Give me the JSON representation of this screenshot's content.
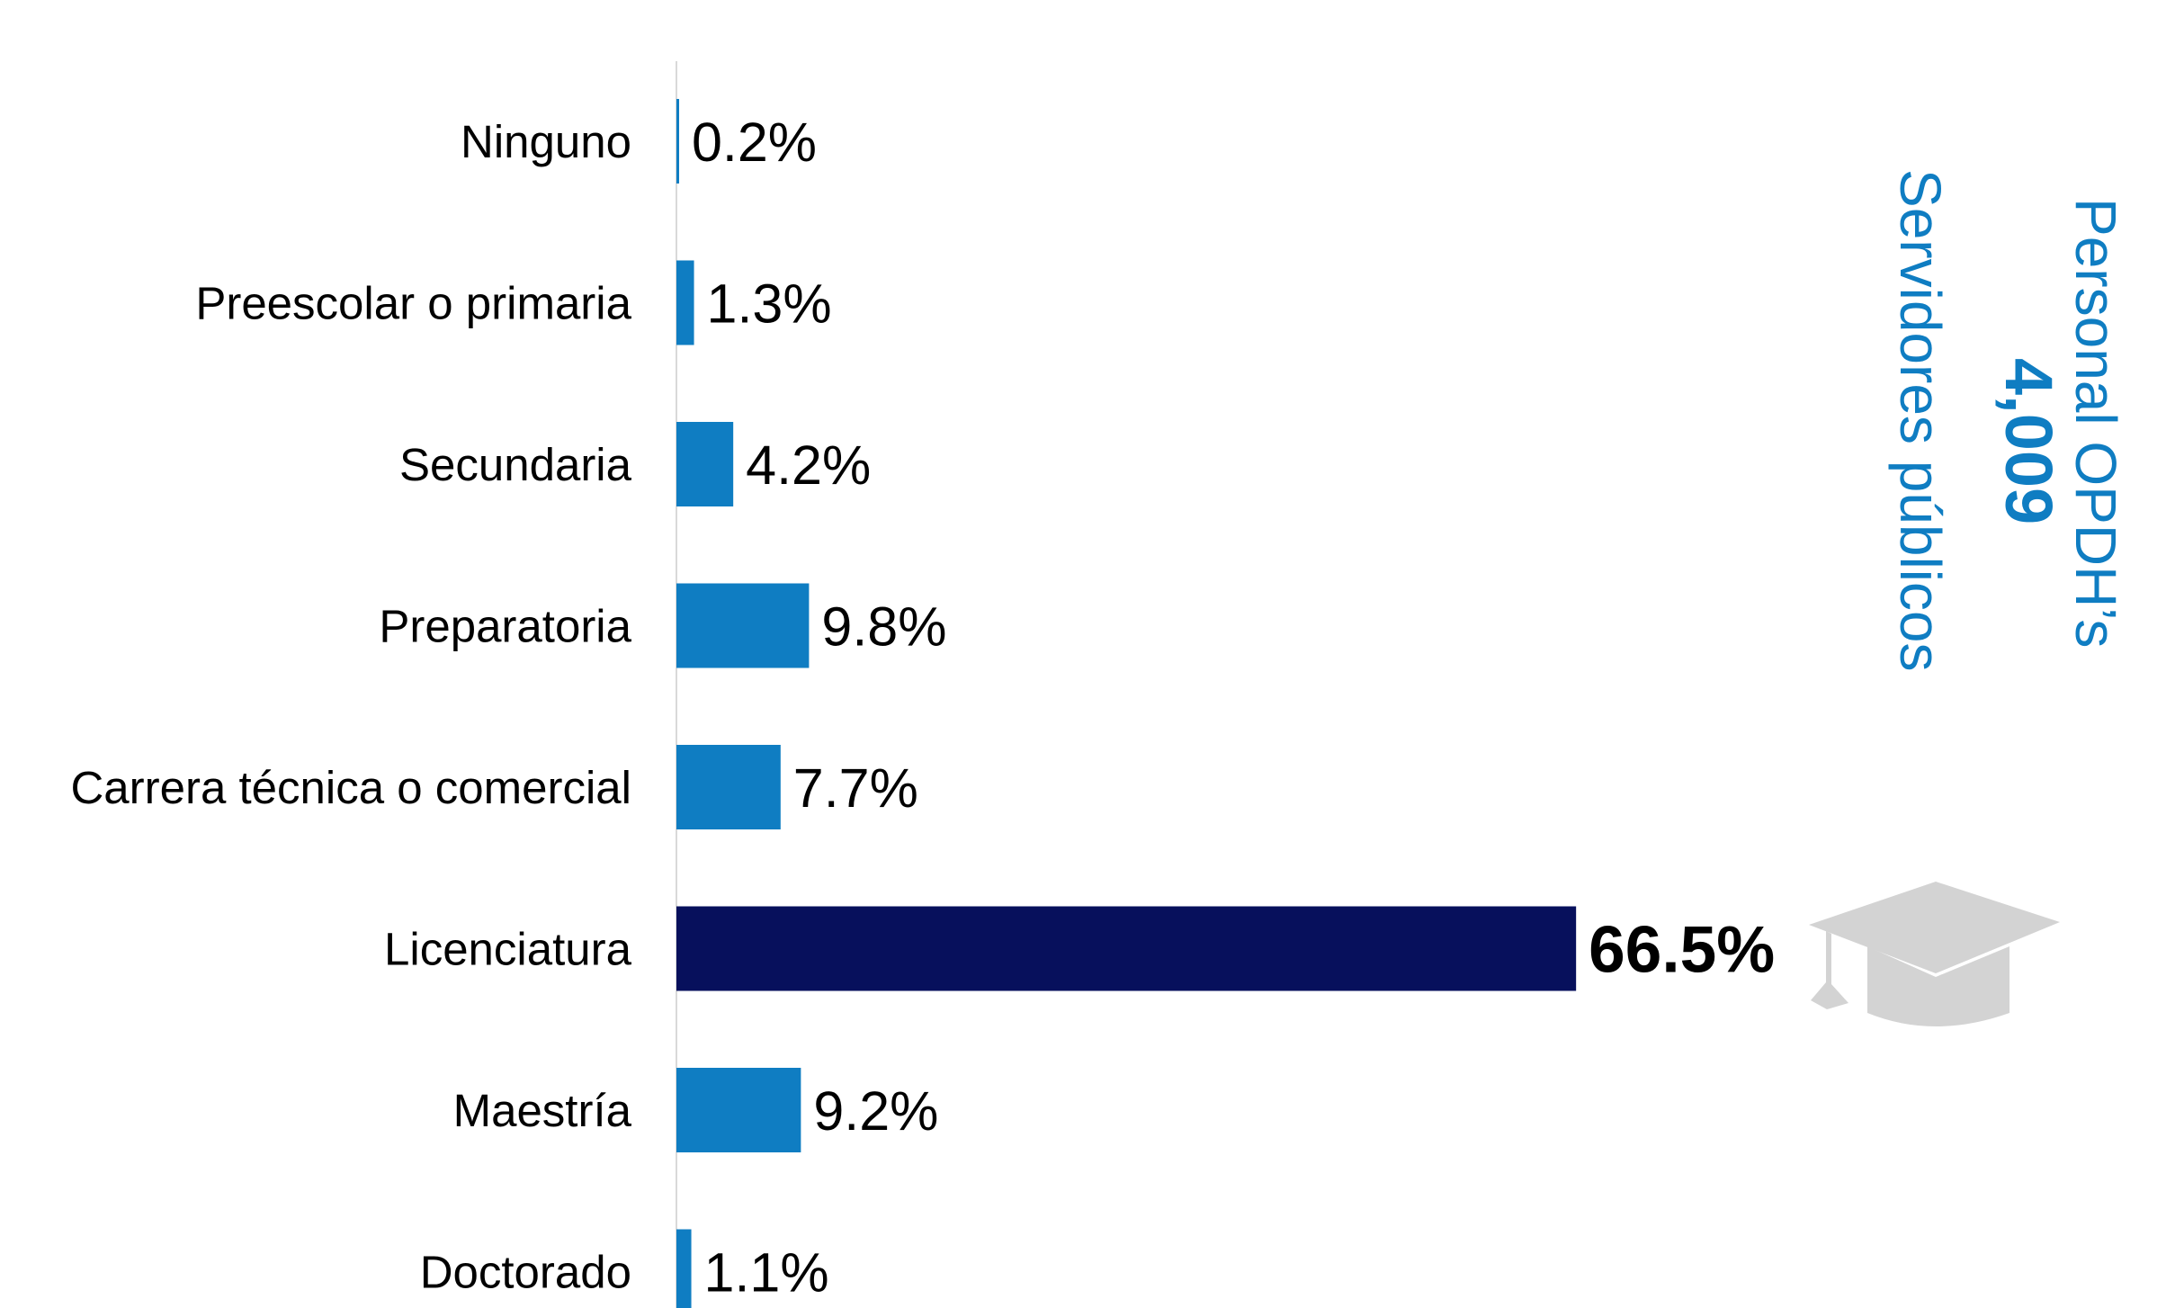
{
  "chart_data": {
    "type": "bar",
    "orientation": "horizontal",
    "categories": [
      "Ninguno",
      "Preescolar o primaria",
      "Secundaria",
      "Preparatoria",
      "Carrera técnica o comercial",
      "Licenciatura",
      "Maestría",
      "Doctorado"
    ],
    "values": [
      0.2,
      1.3,
      4.2,
      9.8,
      7.7,
      66.5,
      9.2,
      1.1
    ],
    "value_labels": [
      "0.2%",
      "1.3%",
      "4.2%",
      "9.8%",
      "7.7%",
      "66.5%",
      "9.2%",
      "1.1%"
    ],
    "highlight_index": 5,
    "xlim": [
      0,
      100
    ],
    "grid": false,
    "legend": "none"
  },
  "side_label": {
    "line1": "Personal OPDH’s",
    "line2": "4,009",
    "line3": "Servidores públicos"
  },
  "colors": {
    "bar": "#0f7dc2",
    "bar_highlight": "#07105c",
    "axis": "#d9d9d9",
    "side_text": "#0f7dc2",
    "icon": "#d3d3d3"
  },
  "icons": {
    "decoration": "graduation-cap-icon"
  }
}
